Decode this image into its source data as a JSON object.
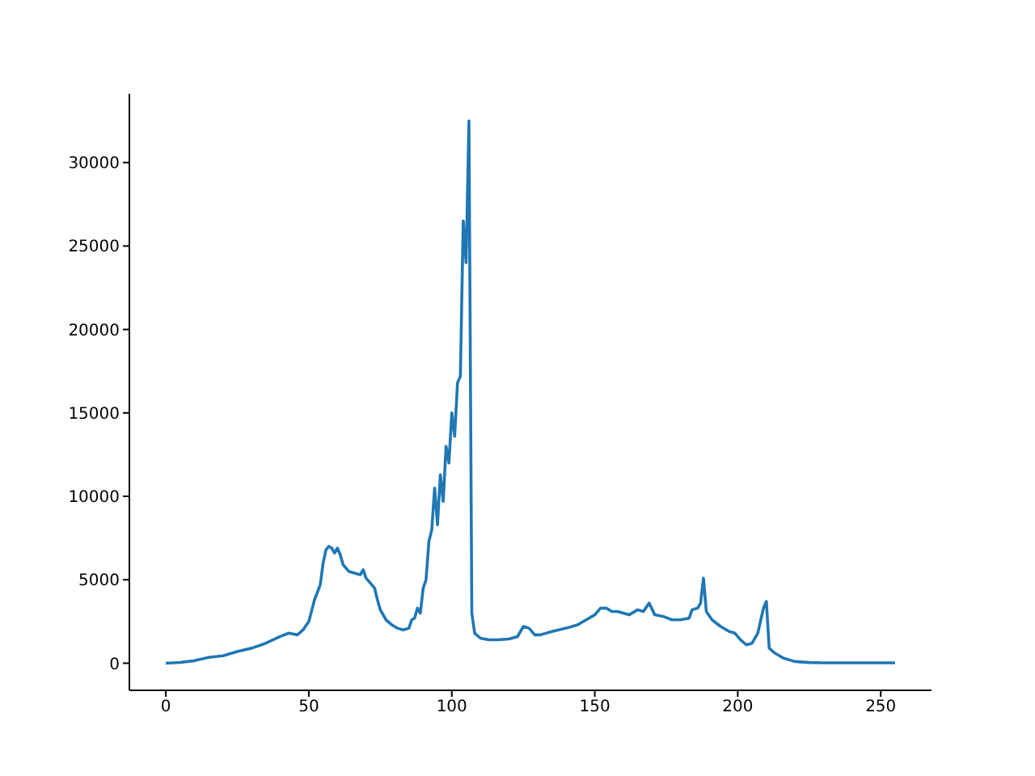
{
  "chart_data": {
    "type": "line",
    "x": [
      0,
      5,
      10,
      15,
      20,
      25,
      30,
      35,
      40,
      43,
      46,
      48,
      50,
      52,
      54,
      55,
      56,
      57,
      58,
      59,
      60,
      61,
      62,
      64,
      66,
      68,
      69,
      70,
      72,
      73,
      74,
      75,
      77,
      79,
      81,
      83,
      85,
      86,
      87,
      88,
      89,
      90,
      91,
      92,
      93,
      94,
      95,
      96,
      97,
      98,
      99,
      100,
      101,
      102,
      103,
      104,
      105,
      106,
      107,
      108,
      110,
      113,
      116,
      120,
      123,
      125,
      127,
      129,
      131,
      135,
      140,
      144,
      147,
      150,
      152,
      154,
      156,
      158,
      160,
      162,
      165,
      167,
      169,
      171,
      174,
      177,
      180,
      183,
      184,
      186,
      187,
      188,
      189,
      191,
      194,
      197,
      199,
      201,
      203,
      205,
      207,
      209,
      210,
      211,
      213,
      216,
      220,
      225,
      230,
      240,
      255
    ],
    "series": [
      {
        "color": "#1f77b4",
        "values": [
          0,
          50,
          150,
          350,
          450,
          700,
          900,
          1200,
          1600,
          1800,
          1700,
          2000,
          2500,
          3800,
          4700,
          6000,
          6800,
          7000,
          6900,
          6600,
          6900,
          6500,
          5900,
          5500,
          5400,
          5300,
          5600,
          5100,
          4700,
          4500,
          3800,
          3200,
          2600,
          2300,
          2100,
          2000,
          2100,
          2600,
          2700,
          3300,
          3000,
          4500,
          5000,
          7300,
          8000,
          10500,
          8300,
          11300,
          9700,
          13000,
          12000,
          15000,
          13600,
          16800,
          17200,
          26500,
          24000,
          32500,
          3000,
          1800,
          1500,
          1400,
          1400,
          1450,
          1600,
          2200,
          2100,
          1700,
          1700,
          1900,
          2100,
          2300,
          2600,
          2900,
          3300,
          3300,
          3100,
          3100,
          3000,
          2900,
          3200,
          3100,
          3600,
          2900,
          2800,
          2600,
          2600,
          2700,
          3200,
          3300,
          3600,
          5100,
          3100,
          2600,
          2200,
          1900,
          1800,
          1400,
          1100,
          1200,
          1800,
          3300,
          3700,
          900,
          600,
          300,
          100,
          40,
          20,
          20,
          20
        ]
      }
    ],
    "xlim": [
      -12.75,
      267.75
    ],
    "xticks": [
      0,
      50,
      100,
      150,
      200,
      250
    ],
    "ylim": [
      -1625,
      34125
    ],
    "yticks": [
      0,
      5000,
      10000,
      15000,
      20000,
      25000,
      30000
    ]
  }
}
